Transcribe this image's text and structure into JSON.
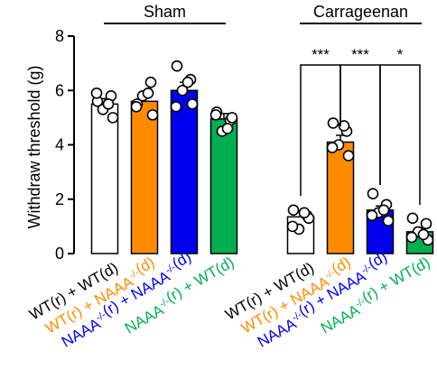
{
  "chart_data": {
    "type": "bar",
    "ylabel": "Withdraw threshold (g)",
    "ylim": [
      0,
      8
    ],
    "yticks": [
      "0",
      "2",
      "4",
      "6",
      "8"
    ],
    "error_bars": "SEM",
    "series_colors": [
      "#ffffff",
      "#ff8c00",
      "#0000ee",
      "#00b050"
    ],
    "groups": [
      {
        "name": "Sham",
        "bars": [
          {
            "value": 5.5,
            "err": 0.2,
            "points": [
              5.6,
              5.8,
              5.3,
              5.0,
              5.9,
              5.5
            ]
          },
          {
            "value": 5.6,
            "err": 0.25,
            "points": [
              5.5,
              6.3,
              5.8,
              5.1,
              5.4,
              5.9
            ]
          },
          {
            "value": 6.0,
            "err": 0.3,
            "points": [
              6.9,
              6.4,
              6.0,
              5.5,
              5.4,
              6.3
            ]
          },
          {
            "value": 4.95,
            "err": 0.2,
            "points": [
              5.2,
              4.9,
              4.5,
              5.0,
              5.1,
              4.6
            ]
          }
        ]
      },
      {
        "name": "Carrageenan",
        "bars": [
          {
            "value": 1.35,
            "err": 0.2,
            "points": [
              1.6,
              1.4,
              0.9,
              1.3,
              1.0,
              1.5
            ]
          },
          {
            "value": 4.1,
            "err": 0.25,
            "points": [
              4.8,
              4.5,
              4.0,
              3.6,
              3.9,
              4.7
            ]
          },
          {
            "value": 1.6,
            "err": 0.15,
            "points": [
              2.2,
              1.8,
              1.5,
              1.2,
              1.4,
              1.6
            ]
          },
          {
            "value": 0.8,
            "err": 0.15,
            "points": [
              1.3,
              1.1,
              0.8,
              0.5,
              0.6,
              0.7
            ]
          }
        ]
      }
    ],
    "significance": [
      {
        "group": 1,
        "from": 0,
        "to": 1,
        "label": "***"
      },
      {
        "group": 1,
        "from": 1,
        "to": 2,
        "label": "***"
      },
      {
        "group": 1,
        "from": 2,
        "to": 3,
        "label": "*"
      }
    ],
    "category_labels": [
      {
        "parts": [
          {
            "text": "WT(r) + WT(d)"
          }
        ],
        "color": "#000000"
      },
      {
        "parts": [
          {
            "text": "WT(r) + NAAA"
          },
          {
            "text": "-/-",
            "sup": true
          },
          {
            "text": "(d)"
          }
        ],
        "color": "#ff8c00"
      },
      {
        "parts": [
          {
            "text": "NAAA"
          },
          {
            "text": "-/-",
            "sup": true
          },
          {
            "text": "(r) + NAAA"
          },
          {
            "text": "-/-",
            "sup": true
          },
          {
            "text": "(d)"
          }
        ],
        "color": "#0000ee"
      },
      {
        "parts": [
          {
            "text": "NAAA"
          },
          {
            "text": "-/-",
            "sup": true
          },
          {
            "text": "(r) + WT(d)"
          }
        ],
        "color": "#00b050"
      }
    ]
  }
}
